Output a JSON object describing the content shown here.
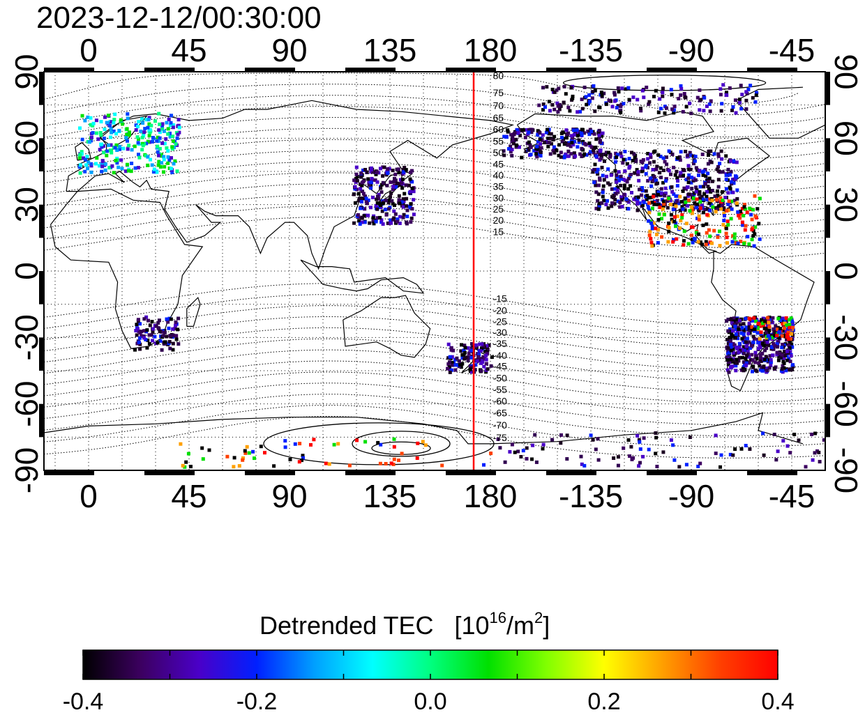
{
  "title": "2023-12-12/00:30:00",
  "longitude_ticks": [
    "0",
    "45",
    "90",
    "135",
    "180",
    "-135",
    "-90",
    "-45"
  ],
  "latitude_ticks": [
    "90",
    "60",
    "30",
    "0",
    "-30",
    "-60",
    "-90"
  ],
  "marker_longitude": 172.5,
  "magnetic_latitude_labels_north": [
    "80",
    "75",
    "70",
    "65",
    "60",
    "55",
    "50",
    "45",
    "40",
    "35",
    "30",
    "25",
    "20",
    "15"
  ],
  "magnetic_latitude_labels_south": [
    "-15",
    "-20",
    "-25",
    "-30",
    "-35",
    "-40",
    "-45",
    "-50",
    "-55",
    "-60",
    "-65",
    "-70",
    "-75"
  ],
  "colorbar": {
    "title": "Detrended TEC",
    "unit_base": "[10",
    "unit_exp": "16",
    "unit_mid": "/m",
    "unit_exp2": "2",
    "unit_end": "]",
    "ticks": [
      "-0.4",
      "-0.2",
      "0.0",
      "0.2",
      "0.4"
    ],
    "range": [
      -0.4,
      0.4
    ],
    "colors": [
      "#000000",
      "#3c0060",
      "#4a00c8",
      "#0020ff",
      "#00a0ff",
      "#00ffff",
      "#00ff80",
      "#00e000",
      "#80ff00",
      "#ffff00",
      "#ffa000",
      "#ff4000",
      "#ff0000"
    ]
  },
  "map": {
    "lon_range": [
      -20,
      330
    ],
    "lat_range": [
      -90,
      90
    ],
    "marker_color": "#ff0000"
  }
}
